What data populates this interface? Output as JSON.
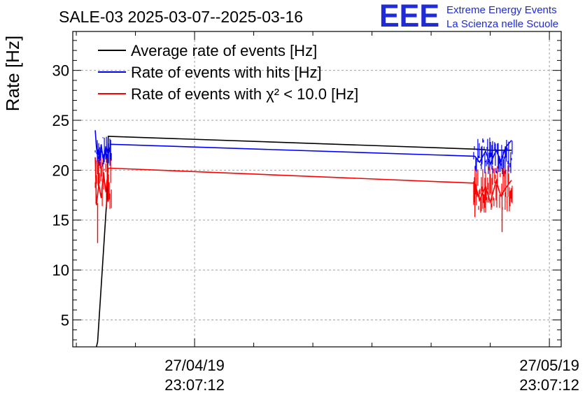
{
  "colors": {
    "average": "#000000",
    "hits": "#0000ff",
    "chi2": "#ff0000",
    "logo": "#1f2bd6",
    "grid": "#a0a0a0"
  },
  "header": {
    "title": "SALE-03 2025-03-07--2025-03-16",
    "logo_text": "EEE",
    "logo_line1": "Extreme Energy Events",
    "logo_line2": "La Scienza nelle Scuole"
  },
  "chart_data": {
    "type": "line",
    "title": "SALE-03 2025-03-07--2025-03-16",
    "xlabel": "",
    "ylabel": "Rate [Hz]",
    "ylim": [
      2.3,
      33.9
    ],
    "yticks": [
      5,
      10,
      15,
      20,
      25,
      30
    ],
    "x_unit": "days since 27/04/19 23:07:12",
    "xlim": [
      -10.3,
      31.0
    ],
    "xticks": [
      {
        "x": 0,
        "date": "27/04/19",
        "time": "23:07:12"
      },
      {
        "x": 30,
        "date": "27/05/19",
        "time": "23:07:12"
      }
    ],
    "grid": true,
    "legend_position": "top-left",
    "series": [
      {
        "name": "Average rate of events [Hz]",
        "color": "#000000",
        "x": [
          -8.3,
          -8.2,
          -7.4,
          -7.3,
          24.0,
          25.0,
          26.8
        ],
        "y": [
          2.3,
          2.8,
          17.5,
          23.4,
          22.1,
          22.0,
          22.0
        ]
      },
      {
        "name": "Rate of events with hits [Hz]",
        "color": "#0000ff",
        "x": [
          -8.4,
          -8.3,
          -8.1,
          -7.9,
          -7.7,
          -7.5,
          -7.3,
          -7.1,
          23.7,
          24.1,
          24.6,
          25.0,
          25.5,
          25.9,
          26.3,
          26.8
        ],
        "y": [
          24.0,
          22.3,
          20.5,
          22.6,
          20.8,
          22.4,
          21.6,
          22.6,
          21.4,
          20.8,
          21.9,
          20.6,
          22.0,
          20.9,
          22.3,
          23.0
        ],
        "noise": [
          [
            -8.4,
            -7.0,
            20.2,
            23.4
          ],
          [
            23.6,
            26.9,
            19.6,
            23.3
          ]
        ]
      },
      {
        "name": "Rate of events with χ² < 10.0 [Hz]",
        "color": "#ff0000",
        "x": [
          -8.4,
          -8.3,
          -8.1,
          -7.9,
          -7.7,
          -7.5,
          -7.3,
          -7.1,
          23.7,
          24.1,
          24.6,
          25.0,
          25.5,
          25.9,
          26.3,
          26.8
        ],
        "y": [
          21.3,
          16.5,
          18.6,
          17.2,
          19.8,
          17.8,
          20.2,
          20.2,
          18.7,
          17.0,
          18.4,
          16.8,
          18.9,
          17.4,
          18.2,
          19.0
        ],
        "noise": [
          [
            -8.4,
            -7.0,
            16.0,
            21.3
          ],
          [
            23.6,
            26.9,
            15.6,
            20.6
          ]
        ],
        "spikes": [
          [
            -8.2,
            12.7
          ],
          [
            26.0,
            13.8
          ],
          [
            23.7,
            15.3
          ]
        ]
      }
    ]
  }
}
